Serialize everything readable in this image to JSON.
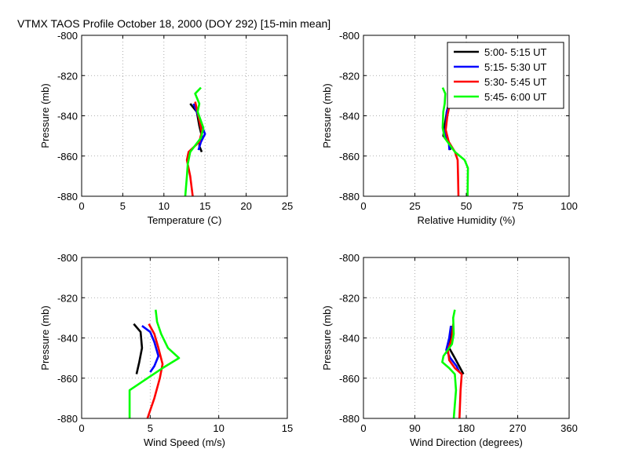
{
  "figure_title": "VTMX TAOS Profile   October 18, 2000 (DOY 292) [15-min mean]",
  "colors": {
    "series": [
      "#000000",
      "#0000ff",
      "#ff0000",
      "#00ff00"
    ],
    "grid": "#999999",
    "axes": "#000000"
  },
  "legend": {
    "placement": "top-right of relative humidity panel",
    "entries": [
      "5:00- 5:15 UT",
      "5:15- 5:30 UT",
      "5:30- 5:45 UT",
      "5:45- 6:00 UT"
    ]
  },
  "chart_data": [
    {
      "type": "line",
      "panel": "temperature",
      "title": "",
      "xlabel": "Temperature (C)",
      "ylabel": "Pressure (mb)",
      "xlim": [
        0,
        25
      ],
      "ylim": [
        -880,
        -800
      ],
      "xticks": [
        "0",
        "5",
        "10",
        "15",
        "20",
        "25"
      ],
      "yticks": [
        "-800",
        "-820",
        "-840",
        "-860",
        "-880"
      ],
      "grid": true,
      "series": [
        {
          "name": "5:00- 5:15 UT",
          "points": [
            [
              13.2,
              -834
            ],
            [
              14.0,
              -838
            ],
            [
              14.3,
              -845
            ],
            [
              14.6,
              -850
            ],
            [
              14.3,
              -855
            ],
            [
              14.6,
              -858
            ]
          ]
        },
        {
          "name": "5:15- 5:30 UT",
          "points": [
            [
              13.6,
              -834
            ],
            [
              14.0,
              -838
            ],
            [
              14.4,
              -843
            ],
            [
              15.0,
              -849
            ],
            [
              14.5,
              -853
            ],
            [
              14.2,
              -857
            ]
          ]
        },
        {
          "name": "5:30- 5:45 UT",
          "points": [
            [
              13.8,
              -833
            ],
            [
              14.2,
              -840
            ],
            [
              14.6,
              -848
            ],
            [
              14.3,
              -853
            ],
            [
              13.0,
              -858
            ],
            [
              12.8,
              -862
            ],
            [
              13.2,
              -870
            ],
            [
              13.5,
              -880
            ]
          ]
        },
        {
          "name": "5:45- 6:00 UT",
          "points": [
            [
              14.5,
              -826
            ],
            [
              13.8,
              -829
            ],
            [
              14.3,
              -834
            ],
            [
              14.1,
              -838
            ],
            [
              14.8,
              -846
            ],
            [
              14.5,
              -851
            ],
            [
              13.2,
              -858
            ],
            [
              12.9,
              -864
            ],
            [
              12.8,
              -870
            ],
            [
              12.6,
              -880
            ]
          ]
        }
      ]
    },
    {
      "type": "line",
      "panel": "relative_humidity",
      "title": "",
      "xlabel": "Relative Humidity (%)",
      "ylabel": "Pressure (mb)",
      "xlim": [
        0,
        100
      ],
      "ylim": [
        -880,
        -800
      ],
      "xticks": [
        "0",
        "25",
        "50",
        "75",
        "100"
      ],
      "yticks": [
        "-800",
        "-820",
        "-840",
        "-860",
        "-880"
      ],
      "grid": true,
      "series": [
        {
          "name": "5:00- 5:15 UT",
          "points": [
            [
              41.5,
              -834
            ],
            [
              40.5,
              -838
            ],
            [
              39.5,
              -845
            ],
            [
              38.8,
              -850
            ],
            [
              41.5,
              -853
            ],
            [
              42.2,
              -857
            ]
          ]
        },
        {
          "name": "5:15- 5:30 UT",
          "points": [
            [
              41.8,
              -834
            ],
            [
              40.5,
              -838
            ],
            [
              40.2,
              -844
            ],
            [
              39.5,
              -849
            ],
            [
              41.5,
              -853
            ],
            [
              41.8,
              -857
            ]
          ]
        },
        {
          "name": "5:30- 5:45 UT",
          "points": [
            [
              42.2,
              -833
            ],
            [
              40.8,
              -840
            ],
            [
              40.0,
              -847
            ],
            [
              41.5,
              -853
            ],
            [
              44.5,
              -858
            ],
            [
              45.8,
              -862
            ],
            [
              46.0,
              -870
            ],
            [
              46.2,
              -880
            ]
          ]
        },
        {
          "name": "5:45- 6:00 UT",
          "points": [
            [
              38.5,
              -826
            ],
            [
              39.8,
              -829
            ],
            [
              39.5,
              -834
            ],
            [
              38.8,
              -838
            ],
            [
              38.5,
              -846
            ],
            [
              39.5,
              -851
            ],
            [
              44.5,
              -858
            ],
            [
              49.2,
              -862
            ],
            [
              50.8,
              -866
            ],
            [
              50.6,
              -880
            ]
          ]
        }
      ]
    },
    {
      "type": "line",
      "panel": "wind_speed",
      "title": "",
      "xlabel": "Wind Speed (m/s)",
      "ylabel": "Pressure (mb)",
      "xlim": [
        0,
        15
      ],
      "ylim": [
        -880,
        -800
      ],
      "xticks": [
        "0",
        "5",
        "10",
        "15"
      ],
      "yticks": [
        "-800",
        "-820",
        "-840",
        "-860",
        "-880"
      ],
      "grid": true,
      "series": [
        {
          "name": "5:00- 5:15 UT",
          "points": [
            [
              3.8,
              -833
            ],
            [
              4.3,
              -837
            ],
            [
              4.4,
              -845
            ],
            [
              4.2,
              -852
            ],
            [
              4.0,
              -858
            ]
          ]
        },
        {
          "name": "5:15- 5:30 UT",
          "points": [
            [
              4.4,
              -834
            ],
            [
              5.0,
              -837
            ],
            [
              5.3,
              -842
            ],
            [
              5.6,
              -849
            ],
            [
              5.3,
              -854
            ],
            [
              5.0,
              -857
            ]
          ]
        },
        {
          "name": "5:30- 5:45 UT",
          "points": [
            [
              4.9,
              -833
            ],
            [
              5.3,
              -838
            ],
            [
              5.6,
              -845
            ],
            [
              5.9,
              -853
            ],
            [
              5.7,
              -860
            ],
            [
              5.3,
              -870
            ],
            [
              4.8,
              -880
            ]
          ]
        },
        {
          "name": "5:45- 6:00 UT",
          "points": [
            [
              5.4,
              -826
            ],
            [
              5.5,
              -832
            ],
            [
              5.8,
              -838
            ],
            [
              6.3,
              -845
            ],
            [
              7.1,
              -850
            ],
            [
              5.9,
              -855
            ],
            [
              4.8,
              -860
            ],
            [
              3.5,
              -866
            ],
            [
              3.5,
              -880
            ]
          ]
        }
      ]
    },
    {
      "type": "line",
      "panel": "wind_direction",
      "title": "",
      "xlabel": "Wind Direction (degrees)",
      "ylabel": "Pressure (mb)",
      "xlim": [
        0,
        360
      ],
      "ylim": [
        -880,
        -800
      ],
      "xticks": [
        "0",
        "90",
        "180",
        "270",
        "360"
      ],
      "yticks": [
        "-800",
        "-820",
        "-840",
        "-860",
        "-880"
      ],
      "grid": true,
      "series": [
        {
          "name": "5:00- 5:15 UT",
          "points": [
            [
              155,
              -834
            ],
            [
              152,
              -840
            ],
            [
              150,
              -845
            ],
            [
              160,
              -850
            ],
            [
              175,
              -858
            ]
          ]
        },
        {
          "name": "5:15- 5:30 UT",
          "points": [
            [
              153,
              -834
            ],
            [
              150,
              -840
            ],
            [
              145,
              -846
            ],
            [
              152,
              -850
            ],
            [
              163,
              -854
            ],
            [
              168,
              -857
            ]
          ]
        },
        {
          "name": "5:30- 5:45 UT",
          "points": [
            [
              157,
              -833
            ],
            [
              155,
              -840
            ],
            [
              148,
              -846
            ],
            [
              150,
              -851
            ],
            [
              160,
              -855
            ],
            [
              172,
              -858
            ],
            [
              170,
              -866
            ],
            [
              168,
              -880
            ]
          ]
        },
        {
          "name": "5:45- 6:00 UT",
          "points": [
            [
              160,
              -826
            ],
            [
              157,
              -830
            ],
            [
              158,
              -838
            ],
            [
              155,
              -843
            ],
            [
              140,
              -849
            ],
            [
              138,
              -852
            ],
            [
              150,
              -855
            ],
            [
              160,
              -858
            ],
            [
              162,
              -866
            ],
            [
              158,
              -880
            ]
          ]
        }
      ]
    }
  ]
}
